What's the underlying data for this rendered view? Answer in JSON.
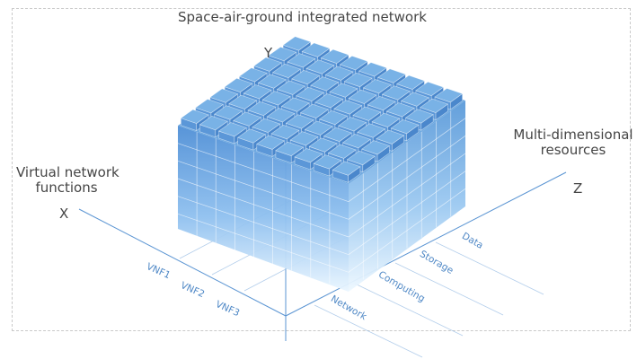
{
  "title": "Space-air-ground integrated network",
  "axes": {
    "y": {
      "letter": "Y"
    },
    "x": {
      "letter": "X",
      "label_line1": "Virtual network",
      "label_line2": "functions"
    },
    "z": {
      "letter": "Z",
      "label_line1": "Multi-dimensional",
      "label_line2": "resources"
    }
  },
  "x_ticks": [
    "VNF1",
    "VNF2",
    "VNF3"
  ],
  "z_ticks": [
    "Network",
    "Computing",
    "Storage",
    "Data"
  ],
  "cube": {
    "columns": 9,
    "depth": 8,
    "layers": 6
  },
  "colors": {
    "axis": "#5b95d3",
    "top_face": "#6fa9e0",
    "side_face_top": "#4f8fd6",
    "side_face_bottom": "#eaf6ff",
    "text": "#454545",
    "tick": "#4f88c6"
  }
}
